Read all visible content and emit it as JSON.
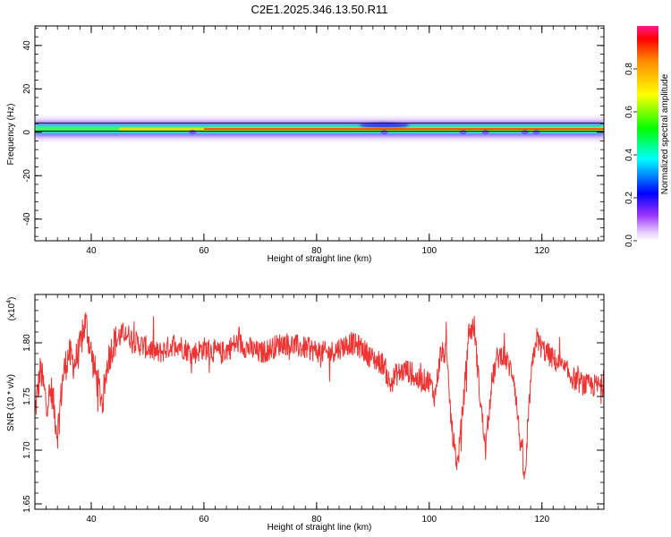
{
  "title": "C2E1.2025.346.13.50.R11",
  "chart_data": [
    {
      "type": "heatmap",
      "xlabel": "Height of straight line (km)",
      "ylabel": "Frequency (Hz)",
      "xlim": [
        30,
        131
      ],
      "ylim": [
        -50,
        49
      ],
      "xticks": [
        40,
        60,
        80,
        100,
        120
      ],
      "yticks": [
        40,
        20,
        0,
        -20,
        -40
      ],
      "band_center_hz": 1.5,
      "band_halfwidth_hz": 3,
      "notes_x_km": [
        58,
        92,
        106,
        110,
        117,
        119
      ],
      "colorbar": {
        "label": "Normalized spectral amplitude",
        "range": [
          0.0,
          1.0
        ],
        "ticks": [
          0.0,
          0.2,
          0.4,
          0.6,
          0.8
        ]
      }
    },
    {
      "type": "line",
      "title": "",
      "xlabel": "Height of straight line (km)",
      "ylabel": "SNR (10 * v/v)",
      "yscale_label": "(x10",
      "yscale_exp": "4",
      "xlim": [
        30,
        131
      ],
      "ylim": [
        1.645,
        1.845
      ],
      "xticks": [
        40,
        60,
        80,
        100,
        120
      ],
      "yticks": [
        1.65,
        1.7,
        1.75,
        1.8
      ],
      "ytick_labels": [
        "1.65",
        "1.70",
        "1.75",
        "1.80"
      ],
      "series": [
        {
          "color": "#ee3333",
          "x": [
            30,
            31,
            32,
            33,
            34,
            35,
            36,
            37,
            38,
            39,
            40,
            41,
            42,
            43,
            44,
            45,
            46,
            48,
            50,
            52,
            55,
            58,
            60,
            63,
            66,
            70,
            74,
            78,
            82,
            86,
            88,
            90,
            92,
            93,
            94,
            96,
            98,
            100,
            101,
            102,
            103,
            104,
            105,
            106,
            107,
            108,
            109,
            110,
            111,
            112,
            113,
            114,
            115,
            116,
            117,
            118,
            119,
            120,
            122,
            124,
            126,
            128,
            131
          ],
          "y": [
            1.735,
            1.775,
            1.745,
            1.755,
            1.715,
            1.77,
            1.79,
            1.78,
            1.795,
            1.82,
            1.79,
            1.765,
            1.745,
            1.785,
            1.8,
            1.805,
            1.81,
            1.8,
            1.795,
            1.79,
            1.8,
            1.79,
            1.795,
            1.79,
            1.8,
            1.79,
            1.8,
            1.795,
            1.79,
            1.8,
            1.795,
            1.785,
            1.78,
            1.76,
            1.77,
            1.775,
            1.765,
            1.765,
            1.75,
            1.79,
            1.79,
            1.72,
            1.685,
            1.74,
            1.81,
            1.815,
            1.75,
            1.7,
            1.76,
            1.785,
            1.79,
            1.78,
            1.77,
            1.715,
            1.67,
            1.765,
            1.805,
            1.795,
            1.785,
            1.775,
            1.765,
            1.76,
            1.76
          ]
        }
      ]
    }
  ]
}
